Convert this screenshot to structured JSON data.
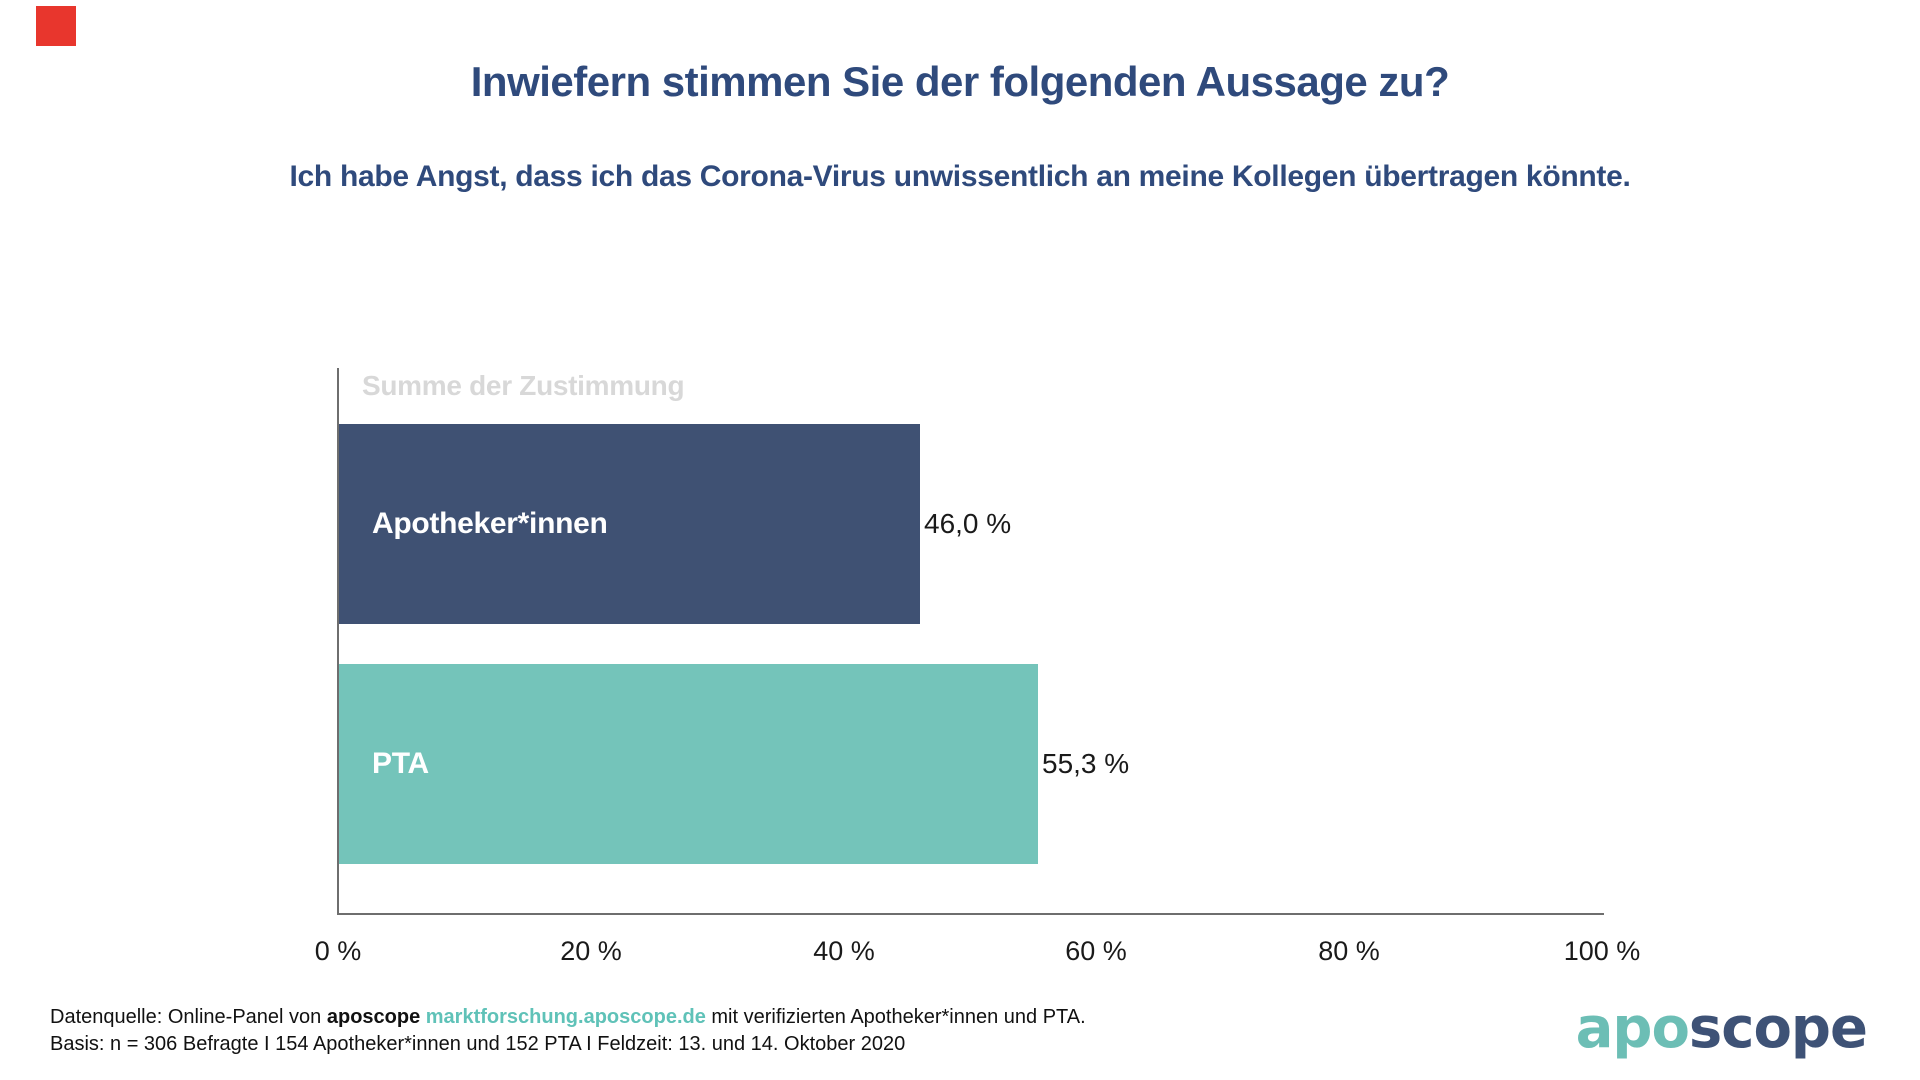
{
  "header": {
    "title": "Inwiefern stimmen Sie der folgenden Aussage zu?",
    "subtitle": "Ich habe Angst, dass ich das Corona-Virus unwissentlich an meine Kollegen übertragen könnte."
  },
  "chart_data": {
    "type": "bar",
    "orientation": "horizontal",
    "title": "Summe der Zustimmung",
    "categories": [
      "Apotheker*innen",
      "PTA"
    ],
    "values": [
      46.0,
      55.3
    ],
    "value_labels": [
      "46,0 %",
      "55,3 %"
    ],
    "bar_colors": [
      "#3F5173",
      "#74C4BA"
    ],
    "xlabel": "",
    "ylabel": "",
    "xlim": [
      0,
      100
    ],
    "x_ticks": [
      "0 %",
      "20 %",
      "40 %",
      "60 %",
      "80 %",
      "100 %"
    ],
    "grid": false,
    "legend": false
  },
  "footer": {
    "line1_prefix": "Datenquelle: Online-Panel von ",
    "line1_brand": "aposcope",
    "line1_link": " marktforschung.aposcope.de",
    "line1_suffix": " mit verifizierten Apotheker*innen und PTA.",
    "line2": "Basis: n = 306 Befragte I 154 Apotheker*innen und 152 PTA I Feldzeit: 13. und 14. Oktober 2020"
  },
  "logo": {
    "part1": "apo",
    "part2": "scope"
  },
  "colors": {
    "accent_red": "#E8362D",
    "title_blue": "#2F4A7C",
    "series_label_gray": "#D8D8D8",
    "axis_line_gray": "#6E6E6E",
    "value_text": "#1A1A1A",
    "tick_text": "#1A1A1A",
    "footer_text": "#111111",
    "link_teal": "#5FC2B8",
    "logo_teal": "#6CBEB5",
    "logo_navy": "#3E5276"
  }
}
